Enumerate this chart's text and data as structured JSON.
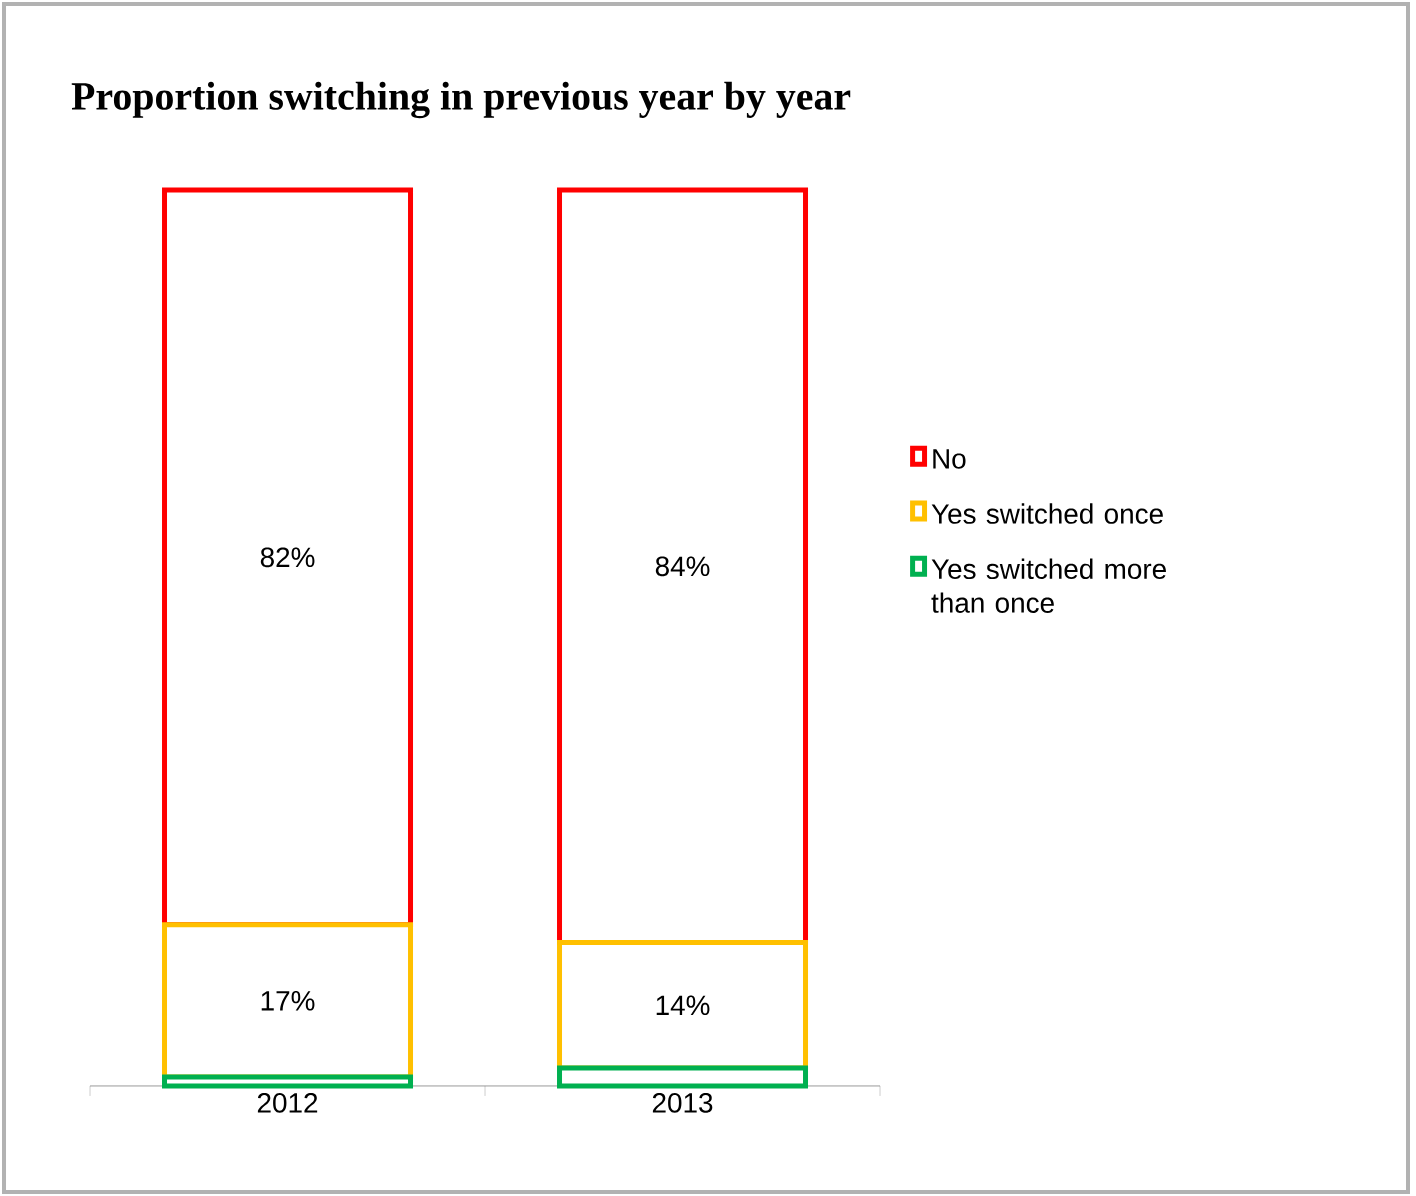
{
  "chart_data": {
    "type": "bar",
    "title": "Proportion switching in previous year by year",
    "categories": [
      "2012",
      "2013"
    ],
    "stacked": true,
    "legend": "right",
    "series": [
      {
        "name": "Yes  switched more than once",
        "color": "#00b050",
        "values": [
          1,
          2
        ],
        "value_labels": [
          null,
          null
        ]
      },
      {
        "name": "Yes  switched once",
        "color": "#ffc000",
        "values": [
          17,
          14
        ],
        "value_labels": [
          "17%",
          "14%"
        ]
      },
      {
        "name": "No",
        "color": "#ff0000",
        "values": [
          82,
          84
        ],
        "value_labels": [
          "82%",
          "84%"
        ]
      }
    ]
  }
}
